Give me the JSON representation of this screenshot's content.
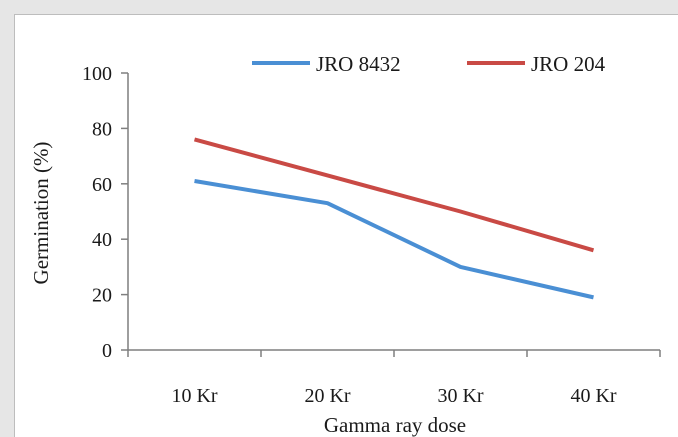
{
  "chart_data": {
    "type": "line",
    "categories": [
      "10 Kr",
      "20 Kr",
      "30 Kr",
      "40 Kr"
    ],
    "series": [
      {
        "name": "JRO 8432",
        "values": [
          61,
          53,
          30,
          19
        ],
        "color": "#4a8fd4"
      },
      {
        "name": "JRO 204",
        "values": [
          76,
          63,
          50,
          36
        ],
        "color": "#c94a45"
      }
    ],
    "xlabel": "Gamma ray dose",
    "ylabel": "Germination (%)",
    "ylim": [
      0,
      100
    ],
    "yticks": [
      0,
      20,
      40,
      60,
      80,
      100
    ],
    "grid": false,
    "legend_position": "top-right"
  }
}
